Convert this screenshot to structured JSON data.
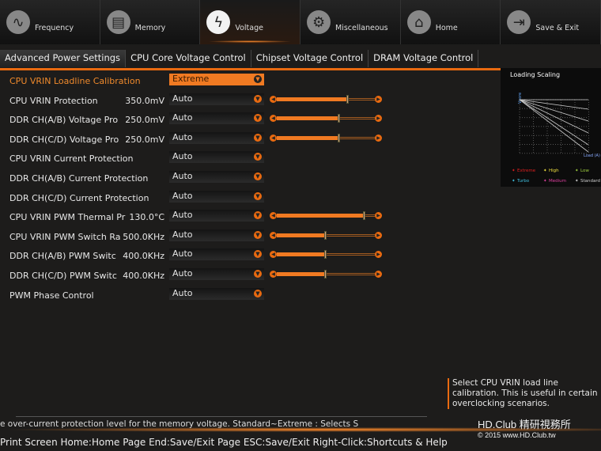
{
  "nav": [
    {
      "label": "Frequency",
      "icon": "sine-wave-icon"
    },
    {
      "label": "Memory",
      "icon": "memory-icon"
    },
    {
      "label": "Voltage",
      "icon": "lightning-icon",
      "active": true
    },
    {
      "label": "Miscellaneous",
      "icon": "gear-icon"
    },
    {
      "label": "Home",
      "icon": "home-icon"
    },
    {
      "label": "Save & Exit",
      "icon": "exit-icon"
    }
  ],
  "subtabs": [
    "Advanced Power Settings",
    "CPU Core Voltage Control",
    "Chipset Voltage Control",
    "DRAM Voltage Control"
  ],
  "rows": [
    {
      "label": "CPU VRIN Loadline Calibration",
      "value": "",
      "option": "Extreme",
      "selected": true
    },
    {
      "label": "CPU VRIN Protection",
      "value": "350.0mV",
      "option": "Auto",
      "slider": 0.71
    },
    {
      "label": "DDR CH(A/B) Voltage Pro",
      "value": "250.0mV",
      "option": "Auto",
      "slider": 0.62
    },
    {
      "label": "DDR CH(C/D) Voltage Pro",
      "value": "250.0mV",
      "option": "Auto",
      "slider": 0.62
    },
    {
      "label": "CPU VRIN Current Protection",
      "value": "",
      "option": "Auto"
    },
    {
      "label": "DDR CH(A/B) Current Protection",
      "value": "",
      "option": "Auto"
    },
    {
      "label": "DDR CH(C/D) Current Protection",
      "value": "",
      "option": "Auto"
    },
    {
      "label": "CPU VRIN PWM Thermal Pr",
      "value": "130.0°C",
      "option": "Auto",
      "slider": 0.88
    },
    {
      "label": "CPU VRIN PWM Switch Ra",
      "value": "500.0KHz",
      "option": "Auto",
      "slider": 0.48
    },
    {
      "label": "DDR CH(A/B) PWM Switc",
      "value": "400.0KHz",
      "option": "Auto",
      "slider": 0.48
    },
    {
      "label": "DDR CH(C/D) PWM Switc",
      "value": "400.0KHz",
      "option": "Auto",
      "slider": 0.48
    },
    {
      "label": "PWM Phase Control",
      "value": "",
      "option": "Auto"
    }
  ],
  "chart": {
    "title": "Loading Scaling",
    "ylabel": "Vcore",
    "xlabel": "Load (A)",
    "legend": [
      {
        "name": "Extreme",
        "color": "#e02020"
      },
      {
        "name": "High",
        "color": "#f0e040"
      },
      {
        "name": "Low",
        "color": "#a0d040"
      },
      {
        "name": "Turbo",
        "color": "#40c0e0"
      },
      {
        "name": "Medium",
        "color": "#e040a0"
      },
      {
        "name": "Standard",
        "color": "#d0d0d0"
      }
    ]
  },
  "help": "Select CPU VRIN load line calibration. This is useful in certain overclocking scenarios.",
  "scroll_text": "e over-current protection level for the memory voltage. Standard~Extreme : Selects S",
  "keys": "Print Screen Home:Home Page End:Save/Exit Page ESC:Save/Exit Right-Click:Shortcuts & Help",
  "watermark": {
    "title": "HD.Club 精研視務所",
    "sub": "© 2015  www.HD.Club.tw"
  },
  "colors": {
    "accent": "#e96a10"
  }
}
